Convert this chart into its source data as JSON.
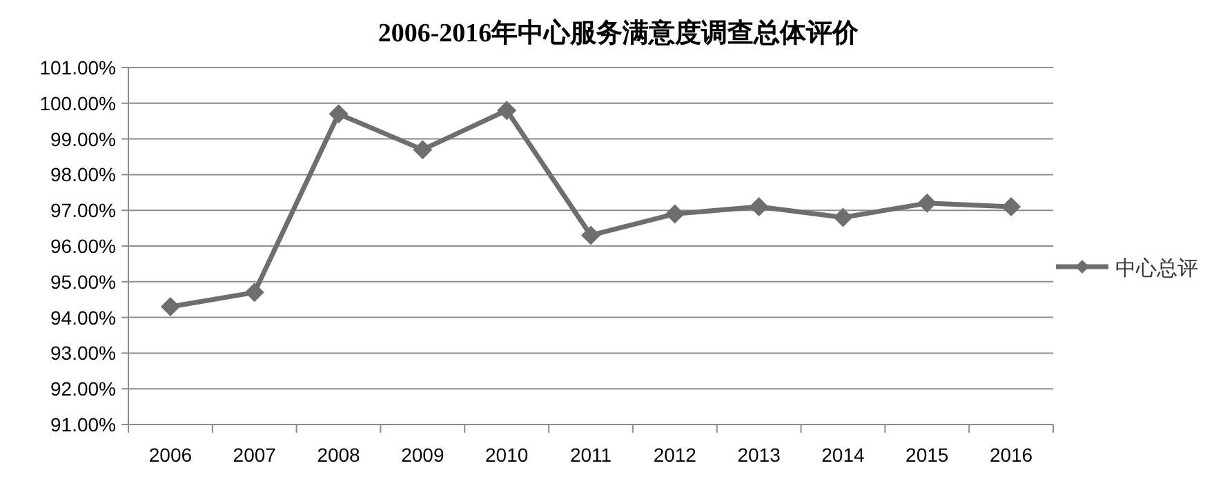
{
  "chart_data": {
    "type": "line",
    "title": "2006-2016年中心服务满意度调查总体评价",
    "categories": [
      "2006",
      "2007",
      "2008",
      "2009",
      "2010",
      "2011",
      "2012",
      "2013",
      "2014",
      "2015",
      "2016"
    ],
    "series": [
      {
        "name": "中心总评",
        "color": "#6e6e6e",
        "values": [
          94.3,
          94.7,
          99.7,
          98.7,
          99.8,
          96.3,
          96.9,
          97.1,
          96.8,
          97.2,
          97.1
        ]
      }
    ],
    "ylim": [
      91,
      101
    ],
    "yticks": [
      {
        "value": 91,
        "label": "91.00%"
      },
      {
        "value": 92,
        "label": "92.00%"
      },
      {
        "value": 93,
        "label": "93.00%"
      },
      {
        "value": 94,
        "label": "94.00%"
      },
      {
        "value": 95,
        "label": "95.00%"
      },
      {
        "value": 96,
        "label": "96.00%"
      },
      {
        "value": 97,
        "label": "97.00%"
      },
      {
        "value": 98,
        "label": "98.00%"
      },
      {
        "value": 99,
        "label": "99.00%"
      },
      {
        "value": 100,
        "label": "100.00%"
      },
      {
        "value": 101,
        "label": "101.00%"
      }
    ],
    "grid": "y",
    "legend": "right",
    "marker": "diamond",
    "line_style": "solid"
  }
}
